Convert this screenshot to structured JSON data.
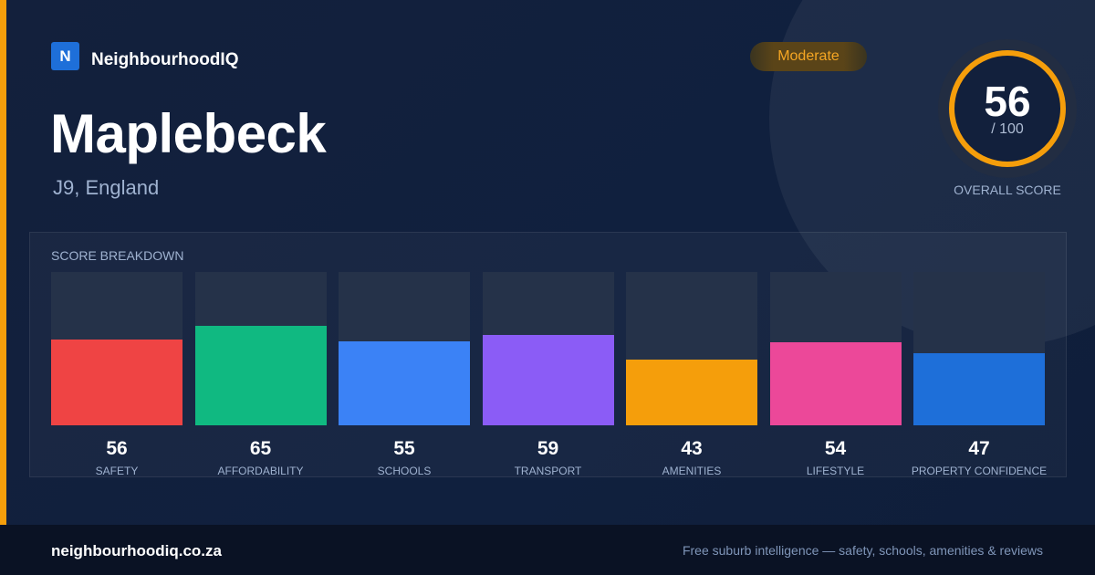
{
  "brand": {
    "logo_letter": "N",
    "name": "NeighbourhoodIQ"
  },
  "suburb": {
    "name": "Maplebeck",
    "location": "J9, England",
    "rating": "Moderate"
  },
  "overall": {
    "score": "56",
    "max": "/ 100",
    "label": "OVERALL SCORE",
    "ring_color": "#f59e0b"
  },
  "breakdown": {
    "title": "SCORE BREAKDOWN"
  },
  "chart_data": {
    "type": "bar",
    "title": "SCORE BREAKDOWN",
    "categories": [
      "SAFETY",
      "AFFORDABILITY",
      "SCHOOLS",
      "TRANSPORT",
      "AMENITIES",
      "LIFESTYLE",
      "PROPERTY CONFIDENCE"
    ],
    "values": [
      56,
      65,
      55,
      59,
      43,
      54,
      47
    ],
    "colors": [
      "#ef4444",
      "#10b981",
      "#3b82f6",
      "#8b5cf6",
      "#f59e0b",
      "#ec4899",
      "#1e6fd9"
    ],
    "ylim": [
      0,
      100
    ],
    "grid": false,
    "legend": "none"
  },
  "footer": {
    "domain": "neighbourhoodiq.co.za",
    "tagline": "Free suburb intelligence — safety, schools, amenities & reviews"
  }
}
